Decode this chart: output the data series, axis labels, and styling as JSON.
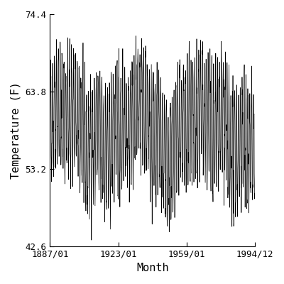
{
  "title": "",
  "xlabel": "Month",
  "ylabel": "Temperature (F)",
  "xlim_start_year": 1887,
  "xlim_start_month": 1,
  "xlim_end_year": 1994,
  "xlim_end_month": 12,
  "ylim": [
    42.6,
    74.4
  ],
  "yticks": [
    42.6,
    53.2,
    63.8,
    74.4
  ],
  "xtick_labels": [
    "1887/01",
    "1923/01",
    "1959/01",
    "1994/12"
  ],
  "xtick_years": [
    1887,
    1923,
    1959,
    1994
  ],
  "xtick_months": [
    1,
    1,
    1,
    12
  ],
  "line_color": "#000000",
  "line_width": 0.5,
  "background_color": "#ffffff",
  "mean_temp": 58.5,
  "amplitude": 7.5,
  "noise_std": 1.8,
  "seed": 42,
  "font_family": "monospace",
  "label_fontsize": 11,
  "tick_fontsize": 9
}
